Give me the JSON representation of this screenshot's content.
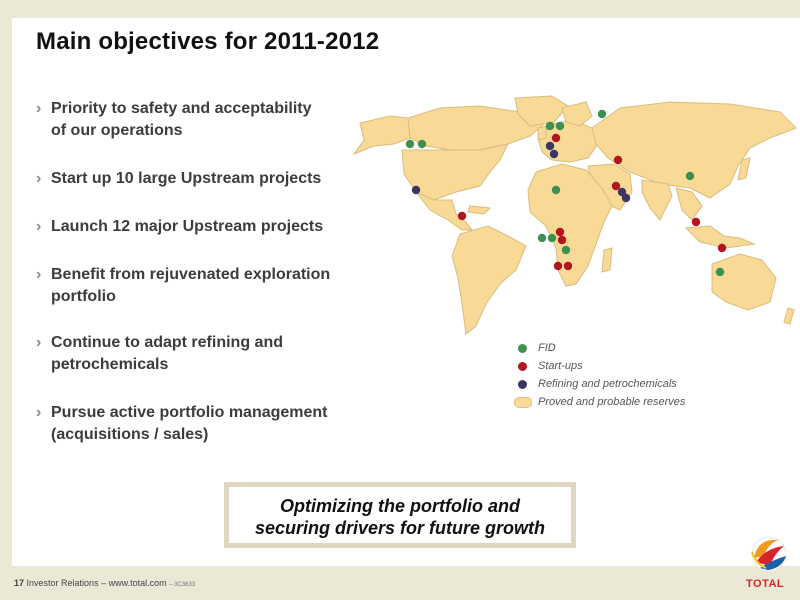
{
  "slide": {
    "title": "Main objectives for 2011-2012",
    "bullets": [
      {
        "lines": [
          "Priority to safety and acceptability",
          "of our operations"
        ]
      },
      {
        "lines": [
          "Start up 10 large Upstream projects"
        ]
      },
      {
        "lines": [
          "Launch 12 major Upstream projects"
        ]
      },
      {
        "lines": [
          "Benefit from rejuvenated exploration",
          "portfolio"
        ]
      },
      {
        "lines": [
          "Continue to adapt refining and",
          "petrochemicals"
        ]
      },
      {
        "lines": [
          "Pursue active portfolio management",
          "(acquisitions / sales)"
        ]
      }
    ],
    "bullet_marker": "›",
    "callout": {
      "line1": "Optimizing the portfolio and",
      "line2": "securing drivers for future growth"
    }
  },
  "map": {
    "land_color": "#f8d996",
    "land_stroke": "#d9bd7e",
    "legend": [
      {
        "label": "FID",
        "color": "#3f8f4f",
        "kind": "dot"
      },
      {
        "label": "Start-ups",
        "color": "#b2151d",
        "kind": "dot"
      },
      {
        "label": "Refining and petrochemicals",
        "color": "#3b3566",
        "kind": "dot"
      },
      {
        "label": "Proved and probable reserves",
        "color": "#f8d996",
        "kind": "swatch"
      }
    ]
  },
  "footer": {
    "page": "17",
    "text": "Investor Relations – www.total.com",
    "code": "– 3C3633"
  },
  "logo": {
    "text": "TOTAL"
  }
}
